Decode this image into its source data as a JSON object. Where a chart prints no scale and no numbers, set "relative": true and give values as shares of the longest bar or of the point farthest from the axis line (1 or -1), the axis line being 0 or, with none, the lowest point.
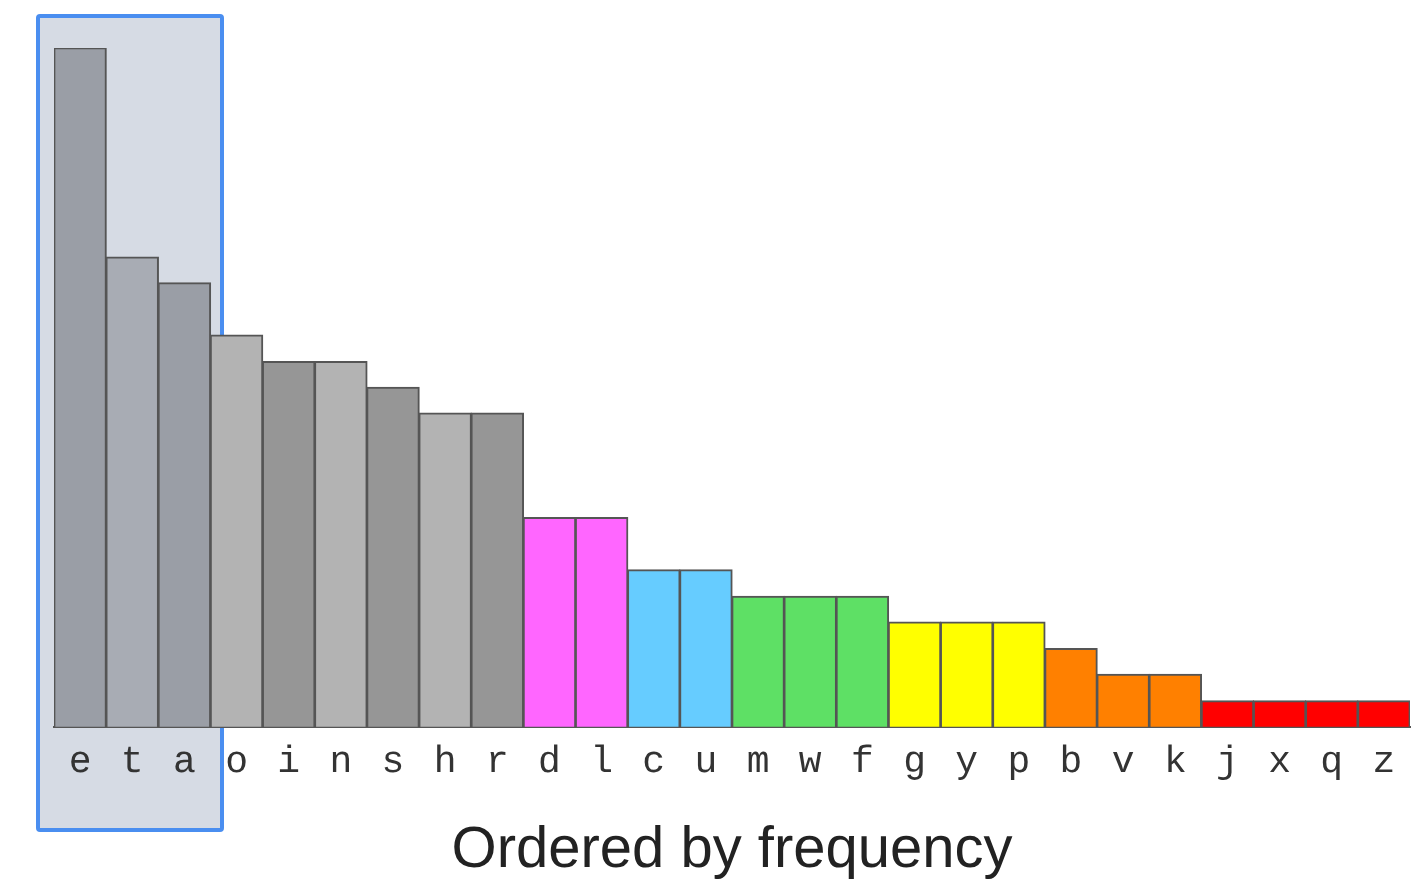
{
  "chart_data": {
    "type": "bar",
    "relative": true,
    "xlabel": "Ordered by frequency",
    "categories": [
      "e",
      "t",
      "a",
      "o",
      "i",
      "n",
      "s",
      "h",
      "r",
      "d",
      "l",
      "c",
      "u",
      "m",
      "w",
      "f",
      "g",
      "y",
      "p",
      "b",
      "v",
      "k",
      "j",
      "x",
      "q",
      "z"
    ],
    "values": [
      1,
      0.692,
      0.654,
      0.577,
      0.538,
      0.538,
      0.5,
      0.462,
      0.462,
      0.308,
      0.308,
      0.231,
      0.231,
      0.192,
      0.192,
      0.192,
      0.154,
      0.154,
      0.154,
      0.115,
      0.077,
      0.077,
      0.038,
      0.038,
      0.038,
      0.038
    ],
    "colors": [
      "#9a9ea6",
      "#a8acb4",
      "#9a9ea6",
      "#b3b3b3",
      "#969696",
      "#b3b3b3",
      "#969696",
      "#b3b3b3",
      "#969696",
      "#ff66ff",
      "#ff66ff",
      "#66ccff",
      "#66ccff",
      "#5ee065",
      "#5ee065",
      "#5ee065",
      "#ffff00",
      "#ffff00",
      "#ffff00",
      "#ff8000",
      "#ff8000",
      "#ff8000",
      "#ff0000",
      "#ff0000",
      "#ff0000",
      "#ff0000"
    ],
    "grid": false,
    "legend": false
  }
}
